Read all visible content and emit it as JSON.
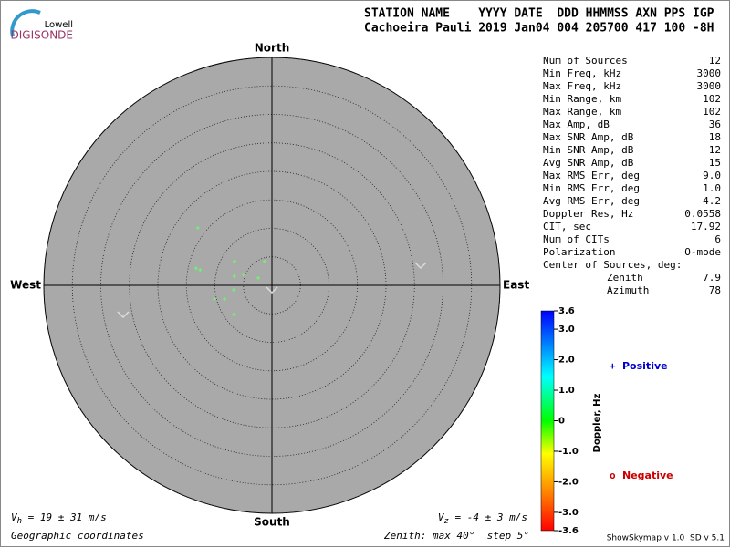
{
  "header": {
    "logo_top": "Lowell",
    "logo_bottom": "DIGISONDE",
    "line1": "STATION NAME    YYYY DATE  DDD HHMMSS AXN PPS IGP",
    "line2": "Cachoeira Pauli 2019 Jan04 004 205700 417 100 -8H"
  },
  "stats": [
    {
      "label": "Num of Sources",
      "value": "12"
    },
    {
      "label": "Min Freq, kHz",
      "value": "3000"
    },
    {
      "label": "Max Freq, kHz",
      "value": "3000"
    },
    {
      "label": "Min Range, km",
      "value": "102"
    },
    {
      "label": "Max Range, km",
      "value": "102"
    },
    {
      "label": "Max Amp, dB",
      "value": "36"
    },
    {
      "label": "Max SNR Amp, dB",
      "value": "18"
    },
    {
      "label": "Min SNR Amp, dB",
      "value": "12"
    },
    {
      "label": "Avg SNR Amp, dB",
      "value": "15"
    },
    {
      "label": "Max RMS Err, deg",
      "value": "9.0"
    },
    {
      "label": "Min RMS Err, deg",
      "value": "1.0"
    },
    {
      "label": "Avg RMS Err, deg",
      "value": "4.2"
    },
    {
      "label": "Doppler Res, Hz",
      "value": "0.0558"
    },
    {
      "label": "CIT, sec",
      "value": "17.92"
    },
    {
      "label": "Num of CITs",
      "value": "6"
    },
    {
      "label": "Polarization",
      "value": "O-mode"
    }
  ],
  "center": {
    "label": "Center of Sources, deg:",
    "rows": [
      {
        "label": "Zenith",
        "value": "7.9"
      },
      {
        "label": "Azimuth",
        "value": "78"
      }
    ]
  },
  "chart_data": {
    "type": "polar-scatter",
    "directions": {
      "north": "North",
      "south": "South",
      "east": "East",
      "west": "West"
    },
    "rlim": [
      0,
      40
    ],
    "rticks": [
      5,
      10,
      15,
      20,
      25,
      30,
      35,
      40
    ],
    "x": [
      -13.0,
      -13.3,
      -12.6,
      -6.6,
      -1.3,
      -5.0,
      -6.6,
      -2.4,
      -6.7,
      -10.1,
      -8.3,
      -6.7
    ],
    "y": [
      10.1,
      3.0,
      2.7,
      4.2,
      4.2,
      1.9,
      1.6,
      1.3,
      -0.8,
      -2.4,
      -2.4,
      -5.1
    ],
    "color": "#66ff66"
  },
  "colorbar": {
    "title": "Doppler, Hz",
    "lim": [
      -3.6,
      3.6
    ],
    "ticks": [
      3.6,
      {
        "value": 3,
        "label": "3.0"
      },
      {
        "value": 2,
        "label": "2.0"
      },
      {
        "value": 1,
        "label": "1.0"
      },
      0,
      {
        "value": -1,
        "label": "-1.0"
      },
      {
        "value": -2,
        "label": "-2.0"
      },
      {
        "value": -3,
        "label": "-3.0"
      },
      -3.6
    ],
    "positive": {
      "symbol": "+",
      "label": "Positive",
      "color": "#0000cc"
    },
    "negative": {
      "symbol": "o",
      "label": "Negative",
      "color": "#cc0000"
    }
  },
  "footer": {
    "vh": {
      "symbol": "V",
      "sub": "h",
      "text": " = 19 ± 31 m/s"
    },
    "vz": {
      "symbol": "V",
      "sub": "z",
      "text": " = -4 ± 3 m/s"
    },
    "coords": "Geographic coordinates",
    "zenith": "Zenith: max 40°  step 5°",
    "version": "ShowSkymap v 1.0  SD v 5.1"
  }
}
